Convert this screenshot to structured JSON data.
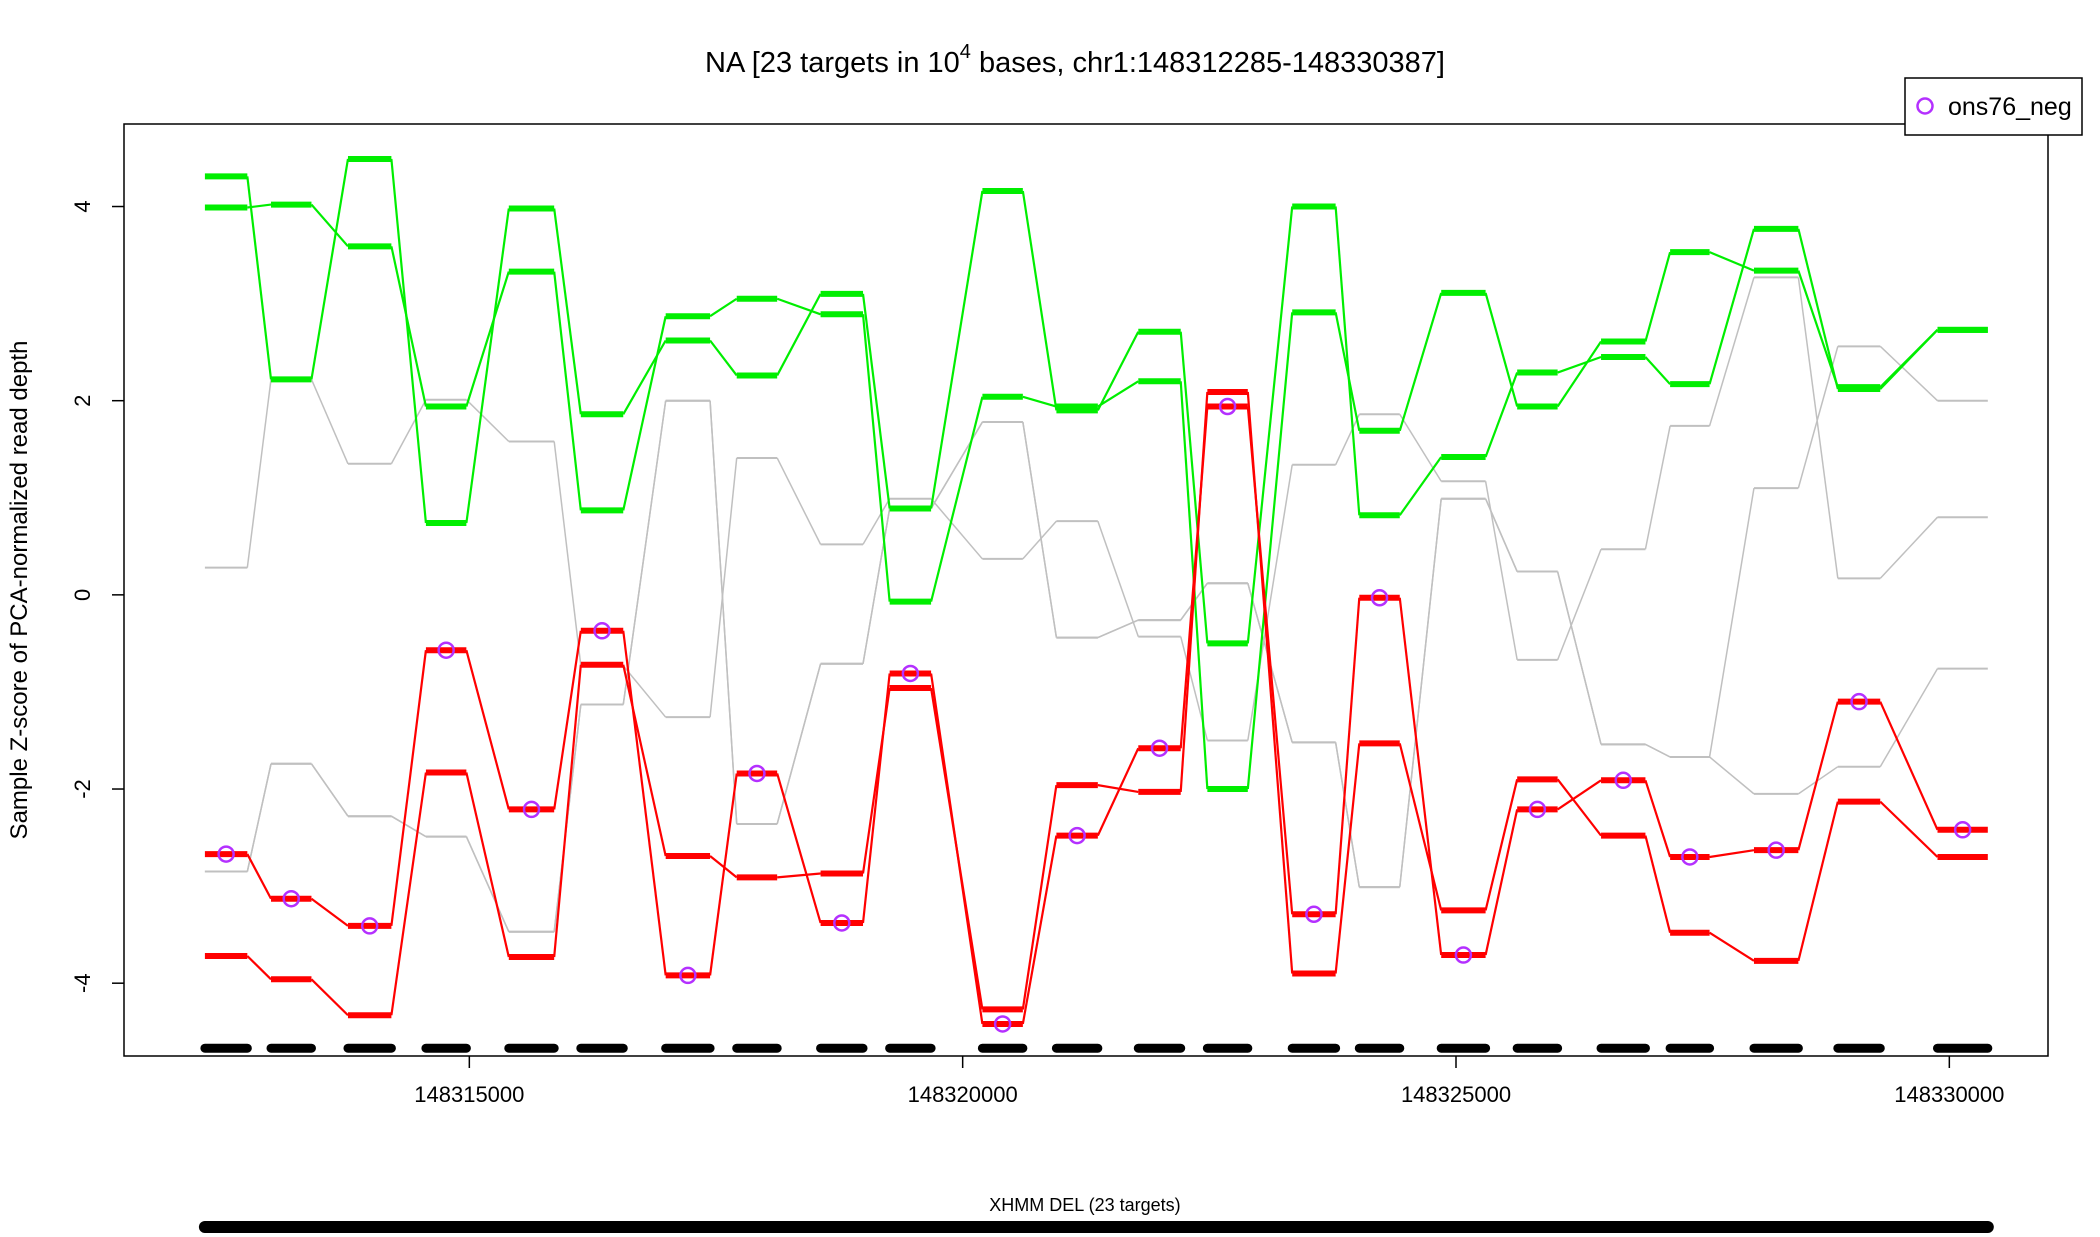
{
  "chart_data": {
    "type": "line",
    "title_prefix": "NA [23 targets in 10",
    "title_sup": "4",
    "title_suffix": " bases, chr1:148312285-148330387]",
    "ylabel": "Sample Z-score of PCA-normalized read depth",
    "xlabel": "",
    "xlim": [
      148311500,
      148331000
    ],
    "ylim": [
      -4.75,
      4.85
    ],
    "x_ticks": [
      148315000,
      148320000,
      148325000,
      148330000
    ],
    "y_ticks": [
      -4,
      -2,
      0,
      2,
      4
    ],
    "grid": false,
    "legend_position": "top-right",
    "legend": [
      {
        "label": "ons76_neg",
        "marker": "circle",
        "color": "#b430ff"
      }
    ],
    "targets": [
      [
        148312320,
        148312750
      ],
      [
        148312990,
        148313400
      ],
      [
        148313770,
        148314210
      ],
      [
        148314560,
        148314970
      ],
      [
        148315400,
        148315860
      ],
      [
        148316130,
        148316560
      ],
      [
        148316990,
        148317440
      ],
      [
        148317710,
        148318120
      ],
      [
        148318560,
        148318990
      ],
      [
        148319260,
        148319680
      ],
      [
        148320200,
        148320610
      ],
      [
        148320950,
        148321370
      ],
      [
        148321780,
        148322210
      ],
      [
        148322480,
        148322890
      ],
      [
        148323340,
        148323780
      ],
      [
        148324020,
        148324430
      ],
      [
        148324850,
        148325300
      ],
      [
        148325620,
        148326030
      ],
      [
        148326470,
        148326920
      ],
      [
        148327170,
        148327570
      ],
      [
        148328020,
        148328470
      ],
      [
        148328870,
        148329300
      ],
      [
        148329880,
        148330390
      ]
    ],
    "series": [
      {
        "group": "highlight",
        "color": "#ff0000",
        "markers": true,
        "values": [
          -2.67,
          -3.13,
          -3.41,
          -0.57,
          -2.21,
          -0.37,
          -3.92,
          -1.84,
          -3.38,
          -0.81,
          -4.42,
          -2.48,
          -1.58,
          1.94,
          -3.29,
          -0.03,
          -3.71,
          -2.21,
          -1.91,
          -2.7,
          -2.63,
          -1.1,
          -2.42
        ]
      },
      {
        "group": "red",
        "color": "#ff0000",
        "markers": false,
        "values": [
          -3.72,
          -3.96,
          -4.33,
          -1.83,
          -3.73,
          -0.72,
          -2.69,
          -2.91,
          -2.87,
          -0.96,
          -4.27,
          -1.96,
          -2.03,
          2.09,
          -3.9,
          -1.53,
          -3.25,
          -1.9,
          -2.48,
          -3.48,
          -3.77,
          -2.13,
          -2.7
        ]
      },
      {
        "group": "green",
        "color": "#00ee00",
        "markers": false,
        "values": [
          4.31,
          2.22,
          4.49,
          0.74,
          3.98,
          1.86,
          2.62,
          2.26,
          3.1,
          0.89,
          4.16,
          1.9,
          2.71,
          -0.5,
          4.0,
          0.82,
          1.42,
          2.29,
          2.45,
          2.17,
          3.77,
          2.12,
          2.73
        ]
      },
      {
        "group": "green",
        "color": "#00ee00",
        "markers": false,
        "values": [
          3.99,
          4.02,
          3.59,
          1.94,
          3.33,
          0.87,
          2.87,
          3.05,
          2.89,
          -0.07,
          2.04,
          1.94,
          2.2,
          -2.0,
          2.91,
          1.69,
          3.11,
          1.94,
          2.61,
          3.53,
          3.34,
          2.14,
          2.73
        ]
      },
      {
        "group": "gray",
        "color": "#c0c0c0",
        "markers": false,
        "values": [
          0.28,
          2.22,
          1.35,
          2.01,
          1.58,
          -0.73,
          -1.26,
          1.41,
          0.52,
          0.99,
          0.37,
          0.76,
          -0.43,
          -1.5,
          1.34,
          1.86,
          1.17,
          -0.67,
          0.47,
          1.74,
          3.27,
          0.17,
          0.8
        ]
      },
      {
        "group": "gray",
        "color": "#c0c0c0",
        "markers": false,
        "values": [
          -2.85,
          -1.74,
          -2.28,
          -2.49,
          -3.47,
          -1.13,
          2.0,
          -2.36,
          -0.71,
          0.89,
          1.78,
          -0.44,
          -0.26,
          0.12,
          -1.52,
          -3.01,
          0.99,
          0.24,
          -1.54,
          -1.67,
          1.1,
          2.56,
          2.0
        ]
      },
      {
        "group": "gray",
        "color": "#c0c0c0",
        "markers": false,
        "values": [
          -2.85,
          -1.74,
          -2.28,
          -2.49,
          -3.47,
          -1.13,
          2.0,
          -2.36,
          -0.71,
          0.89,
          1.78,
          -0.44,
          -0.26,
          0.12,
          -1.52,
          -3.01,
          0.99,
          0.24,
          -1.54,
          -1.67,
          -2.05,
          -1.77,
          -0.76
        ]
      }
    ],
    "target_marker_y": -4.67,
    "track_label": "XHMM DEL (23 targets)",
    "track_range": [
      148312320,
      148330390
    ]
  }
}
